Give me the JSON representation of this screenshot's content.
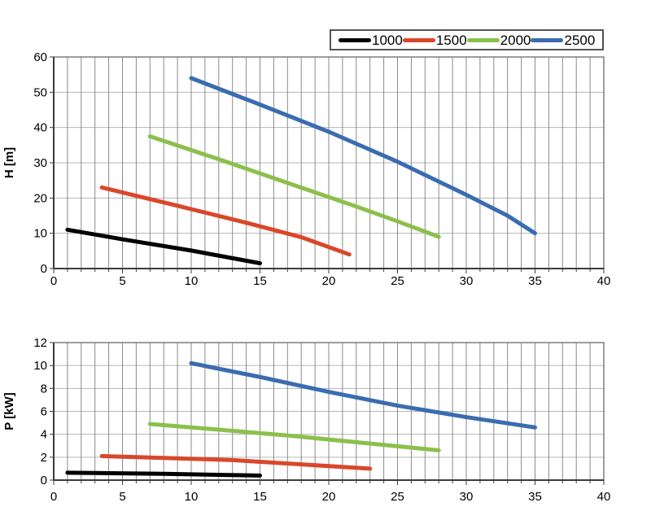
{
  "page": {
    "background": "#ffffff"
  },
  "legend": {
    "items": [
      {
        "label": "1000",
        "color": "#000000"
      },
      {
        "label": "1500",
        "color": "#d9472b"
      },
      {
        "label": "2000",
        "color": "#8cbf4c"
      },
      {
        "label": "2500",
        "color": "#3a6cb0"
      }
    ]
  },
  "chart_data": [
    {
      "type": "line",
      "title": "",
      "xlabel": "",
      "ylabel": "H [m]",
      "xlim": [
        0,
        40
      ],
      "ylim": [
        0,
        60
      ],
      "x_ticks": [
        0,
        5,
        10,
        15,
        20,
        25,
        30,
        35,
        40
      ],
      "y_ticks": [
        0,
        10,
        20,
        30,
        40,
        50,
        60
      ],
      "x_minor_grid_step": 1,
      "grid": {
        "vertical_minor": true,
        "horizontal_major": true
      },
      "legend_position": "above-top-right",
      "series": [
        {
          "name": "1000",
          "color": "#000000",
          "points": [
            [
              1,
              11
            ],
            [
              5,
              8.3
            ],
            [
              10,
              5.1
            ],
            [
              15,
              1.5
            ]
          ]
        },
        {
          "name": "1500",
          "color": "#d9472b",
          "points": [
            [
              3.5,
              23
            ],
            [
              9,
              17.8
            ],
            [
              14,
              13
            ],
            [
              18,
              8.9
            ],
            [
              21.5,
              4
            ]
          ]
        },
        {
          "name": "2000",
          "color": "#8cbf4c",
          "points": [
            [
              7,
              37.5
            ],
            [
              12,
              31
            ],
            [
              17,
              24.3
            ],
            [
              22,
              17.6
            ],
            [
              25,
              13.4
            ],
            [
              28,
              9
            ]
          ]
        },
        {
          "name": "2500",
          "color": "#3a6cb0",
          "points": [
            [
              10,
              54
            ],
            [
              15,
              46.5
            ],
            [
              20,
              38.8
            ],
            [
              25,
              30.3
            ],
            [
              30,
              20.9
            ],
            [
              33,
              15
            ],
            [
              35,
              10
            ]
          ]
        }
      ]
    },
    {
      "type": "line",
      "title": "",
      "xlabel": "",
      "ylabel": "P [kW]",
      "xlim": [
        0,
        40
      ],
      "ylim": [
        0,
        12
      ],
      "x_ticks": [
        0,
        5,
        10,
        15,
        20,
        25,
        30,
        35,
        40
      ],
      "y_ticks": [
        0,
        2,
        4,
        6,
        8,
        10,
        12
      ],
      "x_minor_grid_step": 1,
      "grid": {
        "vertical_minor": true,
        "horizontal_major": true
      },
      "series": [
        {
          "name": "1000",
          "color": "#000000",
          "points": [
            [
              1,
              0.65
            ],
            [
              8,
              0.55
            ],
            [
              15,
              0.4
            ]
          ]
        },
        {
          "name": "1500",
          "color": "#d9472b",
          "points": [
            [
              3.5,
              2.1
            ],
            [
              13,
              1.75
            ],
            [
              23,
              1.0
            ]
          ]
        },
        {
          "name": "2000",
          "color": "#8cbf4c",
          "points": [
            [
              7,
              4.9
            ],
            [
              17,
              3.9
            ],
            [
              28,
              2.6
            ]
          ]
        },
        {
          "name": "2500",
          "color": "#3a6cb0",
          "points": [
            [
              10,
              10.2
            ],
            [
              15,
              9.0
            ],
            [
              20,
              7.7
            ],
            [
              25,
              6.5
            ],
            [
              30,
              5.5
            ],
            [
              35,
              4.6
            ]
          ]
        }
      ]
    }
  ]
}
